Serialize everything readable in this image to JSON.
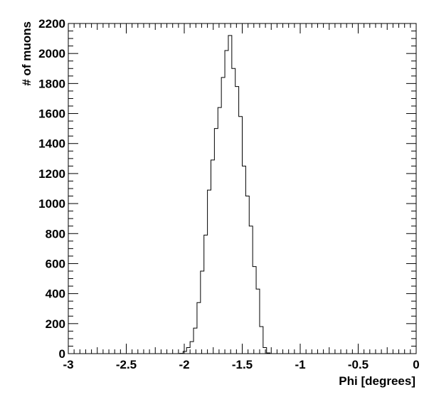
{
  "chart_data": {
    "type": "bar",
    "title": "",
    "xlabel": "Phi [degrees]",
    "ylabel": "# of muons",
    "xlim": [
      -3,
      0
    ],
    "ylim": [
      0,
      2200
    ],
    "grid": false,
    "legend": "none",
    "x_ticks": [
      -3,
      -2.5,
      -2,
      -1.5,
      -1,
      -0.5,
      0
    ],
    "x_tick_labels": [
      "-3",
      "-2.5",
      "-2",
      "-1.5",
      "-1",
      "-0.5",
      "0"
    ],
    "y_ticks": [
      0,
      200,
      400,
      600,
      800,
      1000,
      1200,
      1400,
      1600,
      1800,
      2000,
      2200
    ],
    "y_tick_labels": [
      "0",
      "200",
      "400",
      "600",
      "800",
      "1000",
      "1200",
      "1400",
      "1600",
      "1800",
      "2000",
      "2200"
    ],
    "bin_edges": [
      -2.1,
      -2.07,
      -2.04,
      -2.01,
      -1.98,
      -1.95,
      -1.92,
      -1.89,
      -1.86,
      -1.83,
      -1.8,
      -1.77,
      -1.74,
      -1.71,
      -1.68,
      -1.65,
      -1.62,
      -1.59,
      -1.56,
      -1.53,
      -1.5,
      -1.47,
      -1.44,
      -1.41,
      -1.38,
      -1.35,
      -1.32,
      -1.29,
      -1.26
    ],
    "counts": [
      0,
      0,
      2,
      15,
      40,
      80,
      170,
      340,
      550,
      790,
      1090,
      1290,
      1500,
      1640,
      1840,
      2020,
      2120,
      1900,
      1780,
      1580,
      1250,
      1050,
      850,
      580,
      430,
      180,
      40,
      5
    ]
  }
}
